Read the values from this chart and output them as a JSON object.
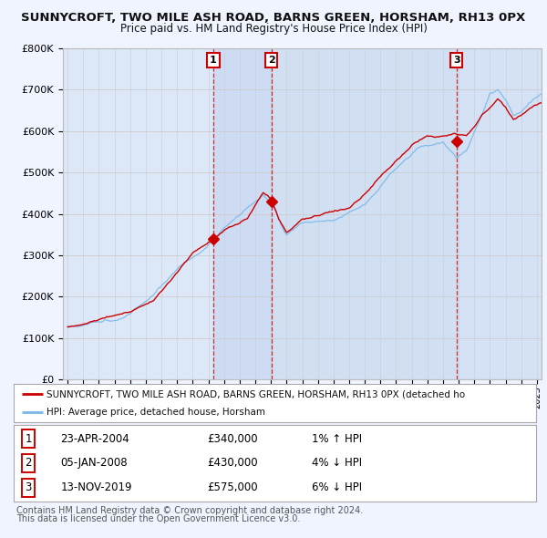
{
  "title1": "SUNNYCROFT, TWO MILE ASH ROAD, BARNS GREEN, HORSHAM, RH13 0PX",
  "title2": "Price paid vs. HM Land Registry's House Price Index (HPI)",
  "hpi_label": "HPI: Average price, detached house, Horsham",
  "prop_label": "SUNNYCROFT, TWO MILE ASH ROAD, BARNS GREEN, HORSHAM, RH13 0PX (detached ho",
  "sales": [
    {
      "num": 1,
      "date": "23-APR-2004",
      "price": 340000,
      "hpi_diff": "1% ↑ HPI",
      "x": 2004.31
    },
    {
      "num": 2,
      "date": "05-JAN-2008",
      "price": 430000,
      "hpi_diff": "4% ↓ HPI",
      "x": 2008.02
    },
    {
      "num": 3,
      "date": "13-NOV-2019",
      "price": 575000,
      "hpi_diff": "6% ↓ HPI",
      "x": 2019.87
    }
  ],
  "ylim": [
    0,
    800000
  ],
  "yticks": [
    0,
    100000,
    200000,
    300000,
    400000,
    500000,
    600000,
    700000,
    800000
  ],
  "ytick_labels": [
    "£0",
    "£100K",
    "£200K",
    "£300K",
    "£400K",
    "£500K",
    "£600K",
    "£700K",
    "£800K"
  ],
  "xlim_start": 1994.7,
  "xlim_end": 2025.3,
  "background_color": "#f0f4ff",
  "plot_bg": "#dce8f8",
  "shade_color": "#c8d8f0",
  "hpi_color": "#7ab8e8",
  "prop_color": "#cc0000",
  "grid_color": "#cccccc",
  "sale_line_color": "#cc0000",
  "row_data": [
    [
      1,
      "23-APR-2004",
      "£340,000",
      "1% ↑ HPI"
    ],
    [
      2,
      "05-JAN-2008",
      "£430,000",
      "4% ↓ HPI"
    ],
    [
      3,
      "13-NOV-2019",
      "£575,000",
      "6% ↓ HPI"
    ]
  ],
  "footnote1": "Contains HM Land Registry data © Crown copyright and database right 2024.",
  "footnote2": "This data is licensed under the Open Government Licence v3.0."
}
